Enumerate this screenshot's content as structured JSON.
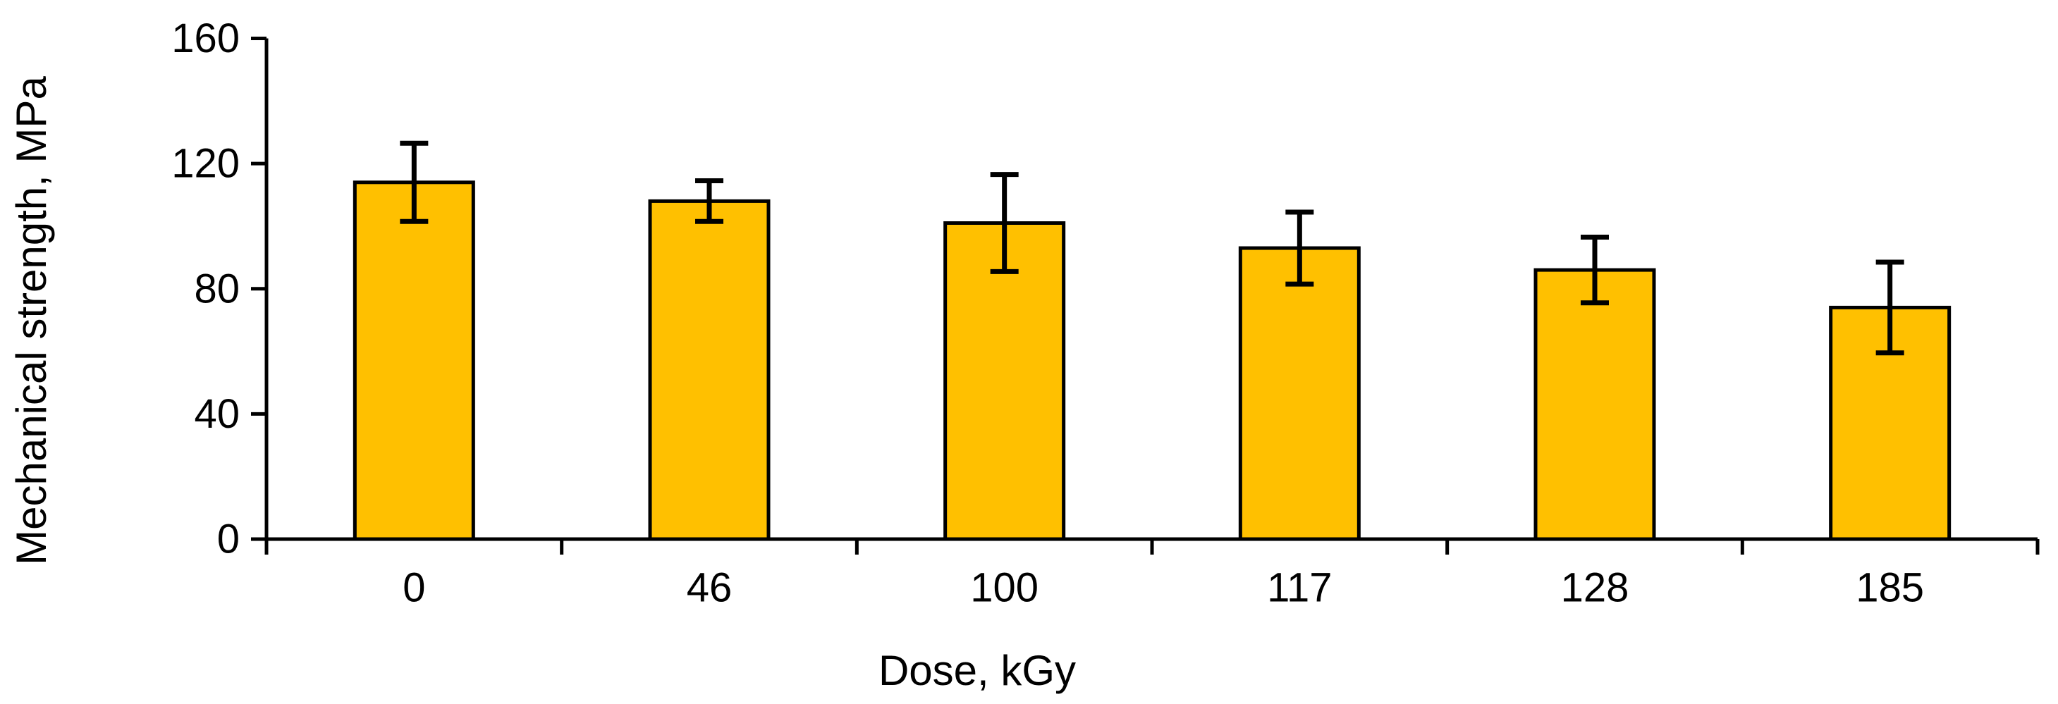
{
  "chart_data": {
    "type": "bar",
    "title": "",
    "categories": [
      "0",
      "46",
      "100",
      "117",
      "128",
      "185"
    ],
    "values": [
      114,
      108,
      101,
      93,
      86,
      74
    ],
    "error_bars": [
      12.5,
      6.5,
      15.5,
      11.5,
      10.5,
      14.5
    ],
    "xlabel": "Dose, kGy",
    "ylabel": "Mechanical strength, MPa",
    "yticks": [
      0,
      40,
      80,
      120,
      160
    ],
    "ylim": [
      0,
      160
    ],
    "grid": false,
    "legend": false,
    "bar_color": "#FFC000",
    "bar_border_color": "#000000",
    "error_bar_color": "#000000",
    "axis_color": "#000000",
    "text_color": "#000000",
    "background_color": "#FFFFFF"
  }
}
